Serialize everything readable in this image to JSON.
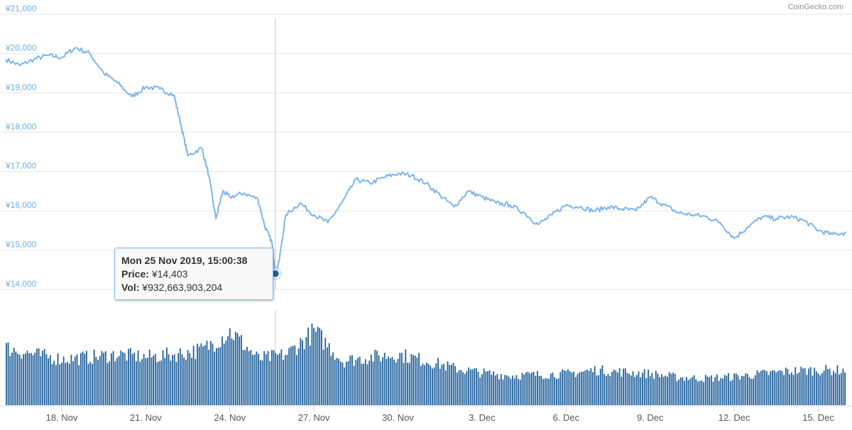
{
  "credit": "CoinGecko.com",
  "tooltip": {
    "title": "Mon 25 Nov 2019, 15:00:38",
    "price_label": "Price:",
    "price_value": "¥14,403",
    "vol_label": "Vol:",
    "vol_value": "¥932,663,903,204"
  },
  "colors": {
    "price_line": "#7cb5ec",
    "volume_bar": "#1f5f9b",
    "marker": "#1f5f9b",
    "axis_label": "#6fb0e0",
    "grid": "#e6e6e6"
  },
  "chart_data": {
    "type": "line",
    "title": "",
    "xlabel": "",
    "ylabel": "",
    "ylim": [
      14000,
      21000
    ],
    "y_ticks": [
      "¥14,000",
      "¥15,000",
      "¥16,000",
      "¥17,000",
      "¥18,000",
      "¥19,000",
      "¥20,000",
      "¥21,000"
    ],
    "x_ticks": [
      "18. Nov",
      "21. Nov",
      "24. Nov",
      "27. Nov",
      "30. Nov",
      "3. Dec",
      "6. Dec",
      "9. Dec",
      "12. Dec",
      "15. Dec"
    ],
    "grid": true,
    "legend": "none",
    "series": [
      {
        "x": [
          "16 Nov 00:00",
          "16 Nov 12:00",
          "17 Nov 00:00",
          "17 Nov 12:00",
          "18 Nov 00:00",
          "18 Nov 12:00",
          "19 Nov 00:00",
          "19 Nov 12:00",
          "20 Nov 00:00",
          "20 Nov 12:00",
          "21 Nov 00:00",
          "21 Nov 12:00",
          "22 Nov 00:00",
          "22 Nov 06:00",
          "22 Nov 12:00",
          "23 Nov 00:00",
          "23 Nov 06:00",
          "23 Nov 12:00",
          "23 Nov 18:00",
          "24 Nov 00:00",
          "24 Nov 12:00",
          "25 Nov 00:00",
          "25 Nov 06:00",
          "25 Nov 12:00",
          "25 Nov 15:00",
          "25 Nov 18:00",
          "26 Nov 00:00",
          "26 Nov 12:00",
          "27 Nov 00:00",
          "27 Nov 12:00",
          "28 Nov 00:00",
          "28 Nov 12:00",
          "29 Nov 00:00",
          "29 Nov 12:00",
          "30 Nov 00:00",
          "30 Nov 12:00",
          "1 Dec 00:00",
          "1 Dec 12:00",
          "2 Dec 00:00",
          "2 Dec 12:00",
          "3 Dec 00:00",
          "3 Dec 12:00",
          "4 Dec 00:00",
          "4 Dec 12:00",
          "5 Dec 00:00",
          "5 Dec 12:00",
          "6 Dec 00:00",
          "6 Dec 12:00",
          "7 Dec 00:00",
          "7 Dec 12:00",
          "8 Dec 00:00",
          "8 Dec 12:00",
          "9 Dec 00:00",
          "9 Dec 12:00",
          "10 Dec 00:00",
          "10 Dec 12:00",
          "11 Dec 00:00",
          "11 Dec 12:00",
          "12 Dec 00:00",
          "12 Dec 12:00",
          "13 Dec 00:00",
          "13 Dec 12:00",
          "14 Dec 00:00",
          "14 Dec 12:00",
          "15 Dec 00:00",
          "15 Dec 12:00",
          "16 Dec 00:00"
        ],
        "values": [
          19850,
          19700,
          19850,
          19950,
          19900,
          20150,
          20000,
          19500,
          19250,
          18900,
          19150,
          19100,
          18950,
          18200,
          17400,
          17600,
          16900,
          15800,
          16500,
          16350,
          16450,
          16300,
          15600,
          15200,
          14403,
          14700,
          15900,
          16200,
          15900,
          15700,
          16200,
          16800,
          16700,
          16850,
          16950,
          16900,
          16700,
          16400,
          16100,
          16500,
          16350,
          16200,
          16150,
          15950,
          15650,
          15900,
          16150,
          16100,
          16000,
          16100,
          16050,
          16000,
          16350,
          16150,
          15950,
          15900,
          15850,
          15700,
          15300,
          15600,
          15850,
          15800,
          15850,
          15750,
          15500,
          15400,
          15450
        ]
      }
    ],
    "volume": {
      "x": [
        "16 Nov",
        "17 Nov",
        "18 Nov",
        "19 Nov",
        "20 Nov",
        "21 Nov",
        "22 Nov",
        "23 Nov",
        "24 Nov",
        "25 Nov",
        "26 Nov",
        "27 Nov",
        "28 Nov",
        "29 Nov",
        "30 Nov",
        "1 Dec",
        "2 Dec",
        "3 Dec",
        "4 Dec",
        "5 Dec",
        "6 Dec",
        "7 Dec",
        "8 Dec",
        "9 Dec",
        "10 Dec",
        "11 Dec",
        "12 Dec",
        "13 Dec",
        "14 Dec",
        "15 Dec",
        "16 Dec"
      ],
      "values": [
        0.62,
        0.55,
        0.5,
        0.52,
        0.55,
        0.52,
        0.55,
        0.6,
        0.8,
        0.5,
        0.55,
        0.8,
        0.48,
        0.52,
        0.55,
        0.48,
        0.4,
        0.35,
        0.32,
        0.33,
        0.34,
        0.38,
        0.36,
        0.34,
        0.3,
        0.29,
        0.31,
        0.34,
        0.37,
        0.38,
        0.38
      ],
      "ylim": [
        0,
        1
      ]
    },
    "highlight": {
      "x": "25 Nov 15:00",
      "value": 14403
    }
  }
}
